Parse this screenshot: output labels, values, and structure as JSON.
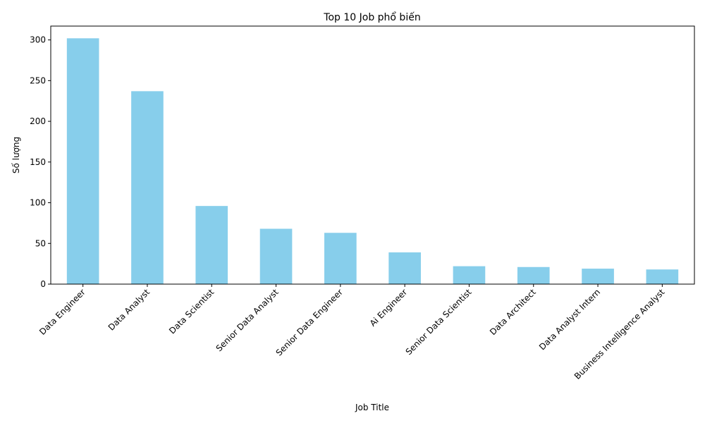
{
  "chart_data": {
    "type": "bar",
    "title": "Top 10 Job phổ biến",
    "xlabel": "Job Title",
    "ylabel": "Số lượng",
    "categories": [
      "Data Engineer",
      "Data Analyst",
      "Data Scientist",
      "Senior Data Analyst",
      "Senior Data Engineer",
      "Ai Engineer",
      "Senior Data Scientist",
      "Data Architect",
      "Data Analyst Intern",
      "Business Intelligence Analyst"
    ],
    "values": [
      302,
      237,
      96,
      68,
      63,
      39,
      22,
      21,
      19,
      18
    ],
    "ylim": [
      0,
      317
    ],
    "yticks": [
      0,
      50,
      100,
      150,
      200,
      250,
      300
    ],
    "bar_color": "#87ceeb",
    "grid": false,
    "legend": "none"
  }
}
